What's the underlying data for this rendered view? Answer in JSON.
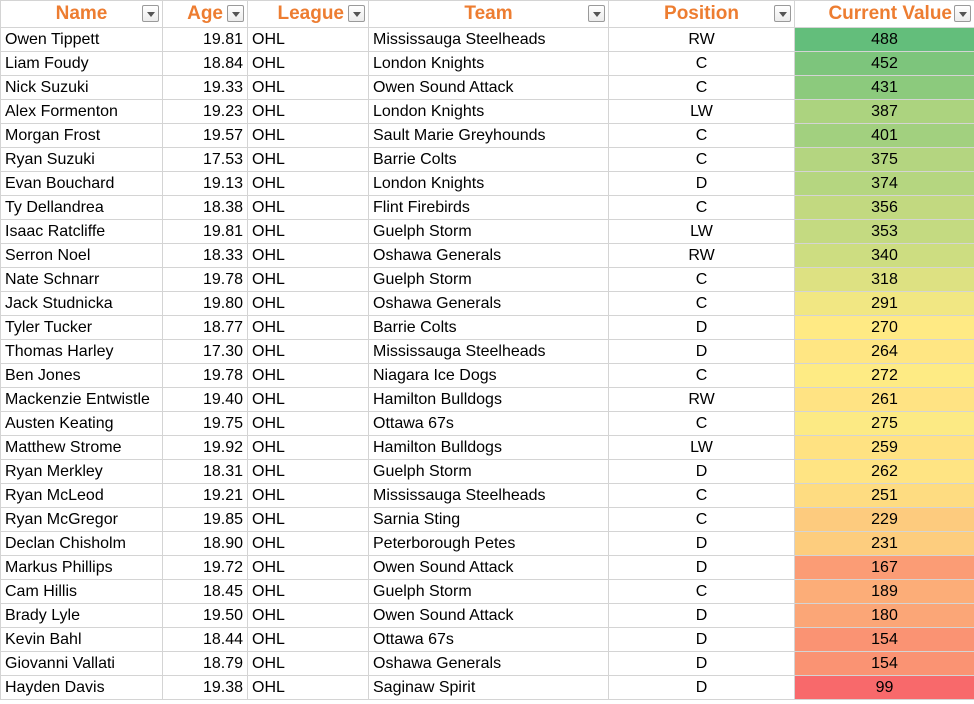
{
  "headers": {
    "name": "Name",
    "age": "Age",
    "league": "League",
    "team": "Team",
    "position": "Position",
    "current_value": "Current Value"
  },
  "colors": {
    "header_text": "#ed7d31",
    "scale_low": "#f8696b",
    "scale_mid": "#ffeb84",
    "scale_high": "#63be7b"
  },
  "rows": [
    {
      "name": "Owen Tippett",
      "age": "19.81",
      "league": "OHL",
      "team": "Mississauga Steelheads",
      "position": "RW",
      "value": "488"
    },
    {
      "name": "Liam Foudy",
      "age": "18.84",
      "league": "OHL",
      "team": "London Knights",
      "position": "C",
      "value": "452"
    },
    {
      "name": "Nick Suzuki",
      "age": "19.33",
      "league": "OHL",
      "team": "Owen Sound Attack",
      "position": "C",
      "value": "431"
    },
    {
      "name": "Alex Formenton",
      "age": "19.23",
      "league": "OHL",
      "team": "London Knights",
      "position": "LW",
      "value": "387"
    },
    {
      "name": "Morgan Frost",
      "age": "19.57",
      "league": "OHL",
      "team": "Sault Marie Greyhounds",
      "position": "C",
      "value": "401"
    },
    {
      "name": "Ryan Suzuki",
      "age": "17.53",
      "league": "OHL",
      "team": "Barrie Colts",
      "position": "C",
      "value": "375"
    },
    {
      "name": "Evan Bouchard",
      "age": "19.13",
      "league": "OHL",
      "team": "London Knights",
      "position": "D",
      "value": "374"
    },
    {
      "name": "Ty Dellandrea",
      "age": "18.38",
      "league": "OHL",
      "team": "Flint Firebirds",
      "position": "C",
      "value": "356"
    },
    {
      "name": "Isaac Ratcliffe",
      "age": "19.81",
      "league": "OHL",
      "team": "Guelph Storm",
      "position": "LW",
      "value": "353"
    },
    {
      "name": "Serron Noel",
      "age": "18.33",
      "league": "OHL",
      "team": "Oshawa Generals",
      "position": "RW",
      "value": "340"
    },
    {
      "name": "Nate Schnarr",
      "age": "19.78",
      "league": "OHL",
      "team": "Guelph Storm",
      "position": "C",
      "value": "318"
    },
    {
      "name": "Jack Studnicka",
      "age": "19.80",
      "league": "OHL",
      "team": "Oshawa Generals",
      "position": "C",
      "value": "291"
    },
    {
      "name": "Tyler Tucker",
      "age": "18.77",
      "league": "OHL",
      "team": "Barrie Colts",
      "position": "D",
      "value": "270"
    },
    {
      "name": "Thomas Harley",
      "age": "17.30",
      "league": "OHL",
      "team": "Mississauga Steelheads",
      "position": "D",
      "value": "264"
    },
    {
      "name": "Ben Jones",
      "age": "19.78",
      "league": "OHL",
      "team": "Niagara Ice Dogs",
      "position": "C",
      "value": "272"
    },
    {
      "name": "Mackenzie Entwistle",
      "age": "19.40",
      "league": "OHL",
      "team": "Hamilton Bulldogs",
      "position": "RW",
      "value": "261"
    },
    {
      "name": "Austen Keating",
      "age": "19.75",
      "league": "OHL",
      "team": "Ottawa 67s",
      "position": "C",
      "value": "275"
    },
    {
      "name": "Matthew Strome",
      "age": "19.92",
      "league": "OHL",
      "team": "Hamilton Bulldogs",
      "position": "LW",
      "value": "259"
    },
    {
      "name": "Ryan Merkley",
      "age": "18.31",
      "league": "OHL",
      "team": "Guelph Storm",
      "position": "D",
      "value": "262"
    },
    {
      "name": "Ryan McLeod",
      "age": "19.21",
      "league": "OHL",
      "team": "Mississauga Steelheads",
      "position": "C",
      "value": "251"
    },
    {
      "name": "Ryan McGregor",
      "age": "19.85",
      "league": "OHL",
      "team": "Sarnia Sting",
      "position": "C",
      "value": "229"
    },
    {
      "name": "Declan Chisholm",
      "age": "18.90",
      "league": "OHL",
      "team": "Peterborough Petes",
      "position": "D",
      "value": "231"
    },
    {
      "name": "Markus Phillips",
      "age": "19.72",
      "league": "OHL",
      "team": "Owen Sound Attack",
      "position": "D",
      "value": "167"
    },
    {
      "name": "Cam Hillis",
      "age": "18.45",
      "league": "OHL",
      "team": "Guelph Storm",
      "position": "C",
      "value": "189"
    },
    {
      "name": "Brady Lyle",
      "age": "19.50",
      "league": "OHL",
      "team": "Owen Sound Attack",
      "position": "D",
      "value": "180"
    },
    {
      "name": "Kevin Bahl",
      "age": "18.44",
      "league": "OHL",
      "team": "Ottawa 67s",
      "position": "D",
      "value": "154"
    },
    {
      "name": "Giovanni Vallati",
      "age": "18.79",
      "league": "OHL",
      "team": "Oshawa Generals",
      "position": "D",
      "value": "154"
    },
    {
      "name": "Hayden Davis",
      "age": "19.38",
      "league": "OHL",
      "team": "Saginaw Spirit",
      "position": "D",
      "value": "99"
    }
  ]
}
